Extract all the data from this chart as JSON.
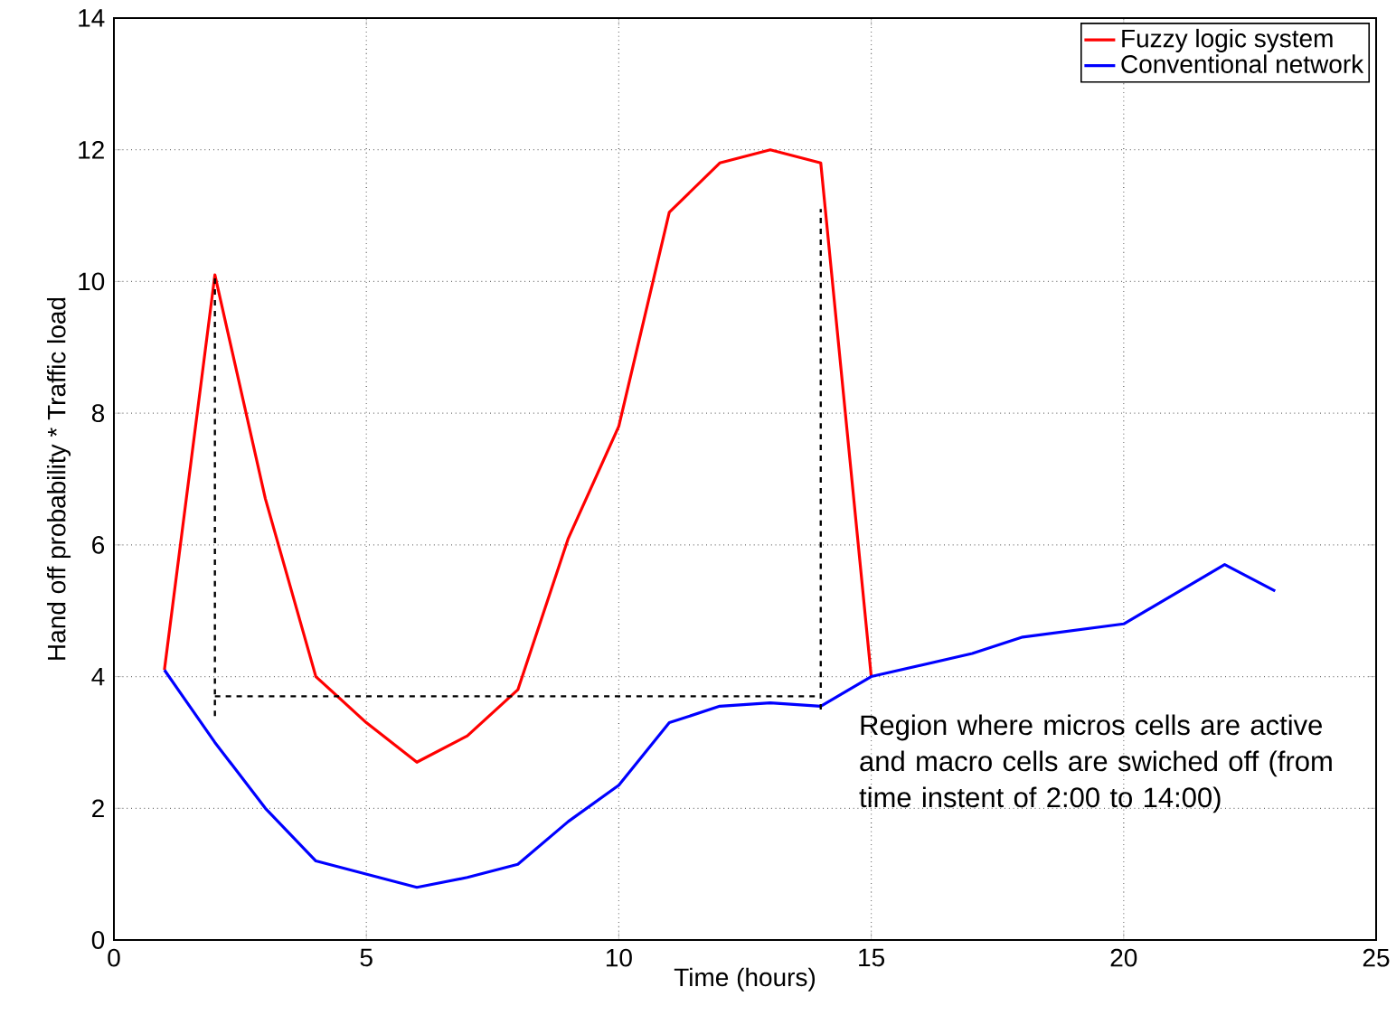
{
  "chart_data": {
    "type": "line",
    "xlabel": "Time (hours)",
    "ylabel": "Hand off probability * Traffic load",
    "xlim": [
      0,
      25
    ],
    "xticks": [
      0,
      5,
      10,
      15,
      20,
      25
    ],
    "ylim": [
      0,
      14
    ],
    "yticks": [
      0,
      2,
      4,
      6,
      8,
      10,
      12,
      14
    ],
    "grid": true,
    "legend": "top right",
    "marker": "none",
    "line_style": "solid",
    "series": [
      {
        "name": "Fuzzy logic system",
        "color": "#ff0000",
        "x": [
          1,
          2,
          3,
          4,
          5,
          6,
          7,
          8,
          9,
          10,
          11,
          12,
          13,
          14,
          15
        ],
        "values": [
          4.1,
          10.1,
          6.7,
          4.0,
          3.3,
          2.7,
          3.1,
          3.8,
          6.1,
          7.8,
          11.05,
          11.8,
          12.0,
          11.8,
          4.0
        ]
      },
      {
        "name": "Conventional network",
        "color": "#0000ff",
        "x": [
          1,
          2,
          3,
          4,
          5,
          6,
          7,
          8,
          9,
          10,
          11,
          12,
          13,
          14,
          15,
          17,
          18,
          20,
          22,
          23
        ],
        "values": [
          4.1,
          3.0,
          2.0,
          1.2,
          1.0,
          0.8,
          0.95,
          1.15,
          1.8,
          2.35,
          3.3,
          3.55,
          3.6,
          3.55,
          4.0,
          4.35,
          4.6,
          4.8,
          5.7,
          5.3
        ]
      },
      {
        "color": "#000000",
        "line_style": "dashed",
        "x": [
          2,
          2
        ],
        "values": [
          3.4,
          10.1
        ]
      },
      {
        "color": "#000000",
        "line_style": "dashed",
        "x": [
          14,
          14
        ],
        "values": [
          3.5,
          11.1
        ]
      },
      {
        "color": "#000000",
        "line_style": "dashed",
        "x": [
          2,
          14
        ],
        "values": [
          3.7,
          3.7
        ]
      }
    ],
    "annotations": [
      "Region where micros cells are active and macro cells are swiched off (from time instent of 2:00 to 14:00)"
    ]
  }
}
